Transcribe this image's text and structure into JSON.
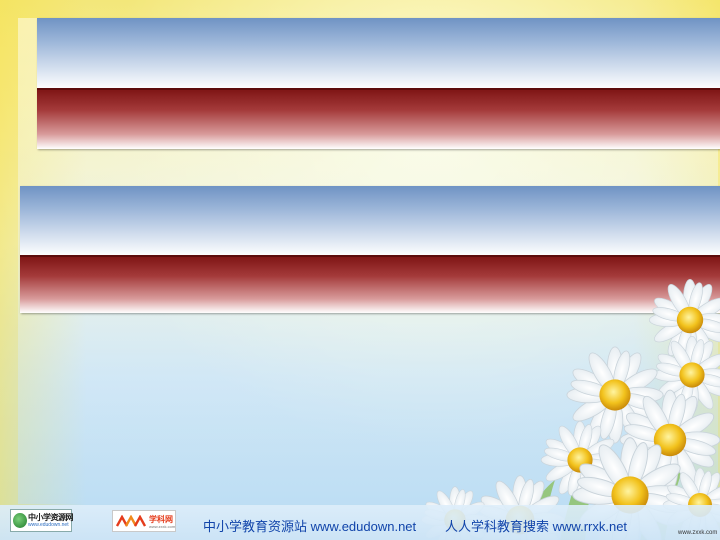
{
  "slide": {
    "background_colors": {
      "yellow": "#f3e77a",
      "light_blue": "#b8dcf3",
      "band_blue": "#6f93c4",
      "band_red": "#7e1414"
    },
    "title_groups": [
      {
        "blue_band_text": "",
        "red_band_text": ""
      },
      {
        "blue_band_text": "",
        "red_band_text": ""
      }
    ]
  },
  "footer": {
    "logo_left": {
      "title": "中小学资源网",
      "subtitle": "www.edudown.net",
      "icon": "globe-icon"
    },
    "logo_right": {
      "title": "学科网",
      "subtitle": "www.zxxk.com",
      "icon": "zxxk-logo-icon"
    },
    "link1": {
      "label": "中小学教育资源站",
      "url_text": "www.edudown.net"
    },
    "link2": {
      "label": "人人学科教育搜索",
      "url_text": "www.rrxk.net"
    },
    "watermark": "www.zxxk.com"
  }
}
